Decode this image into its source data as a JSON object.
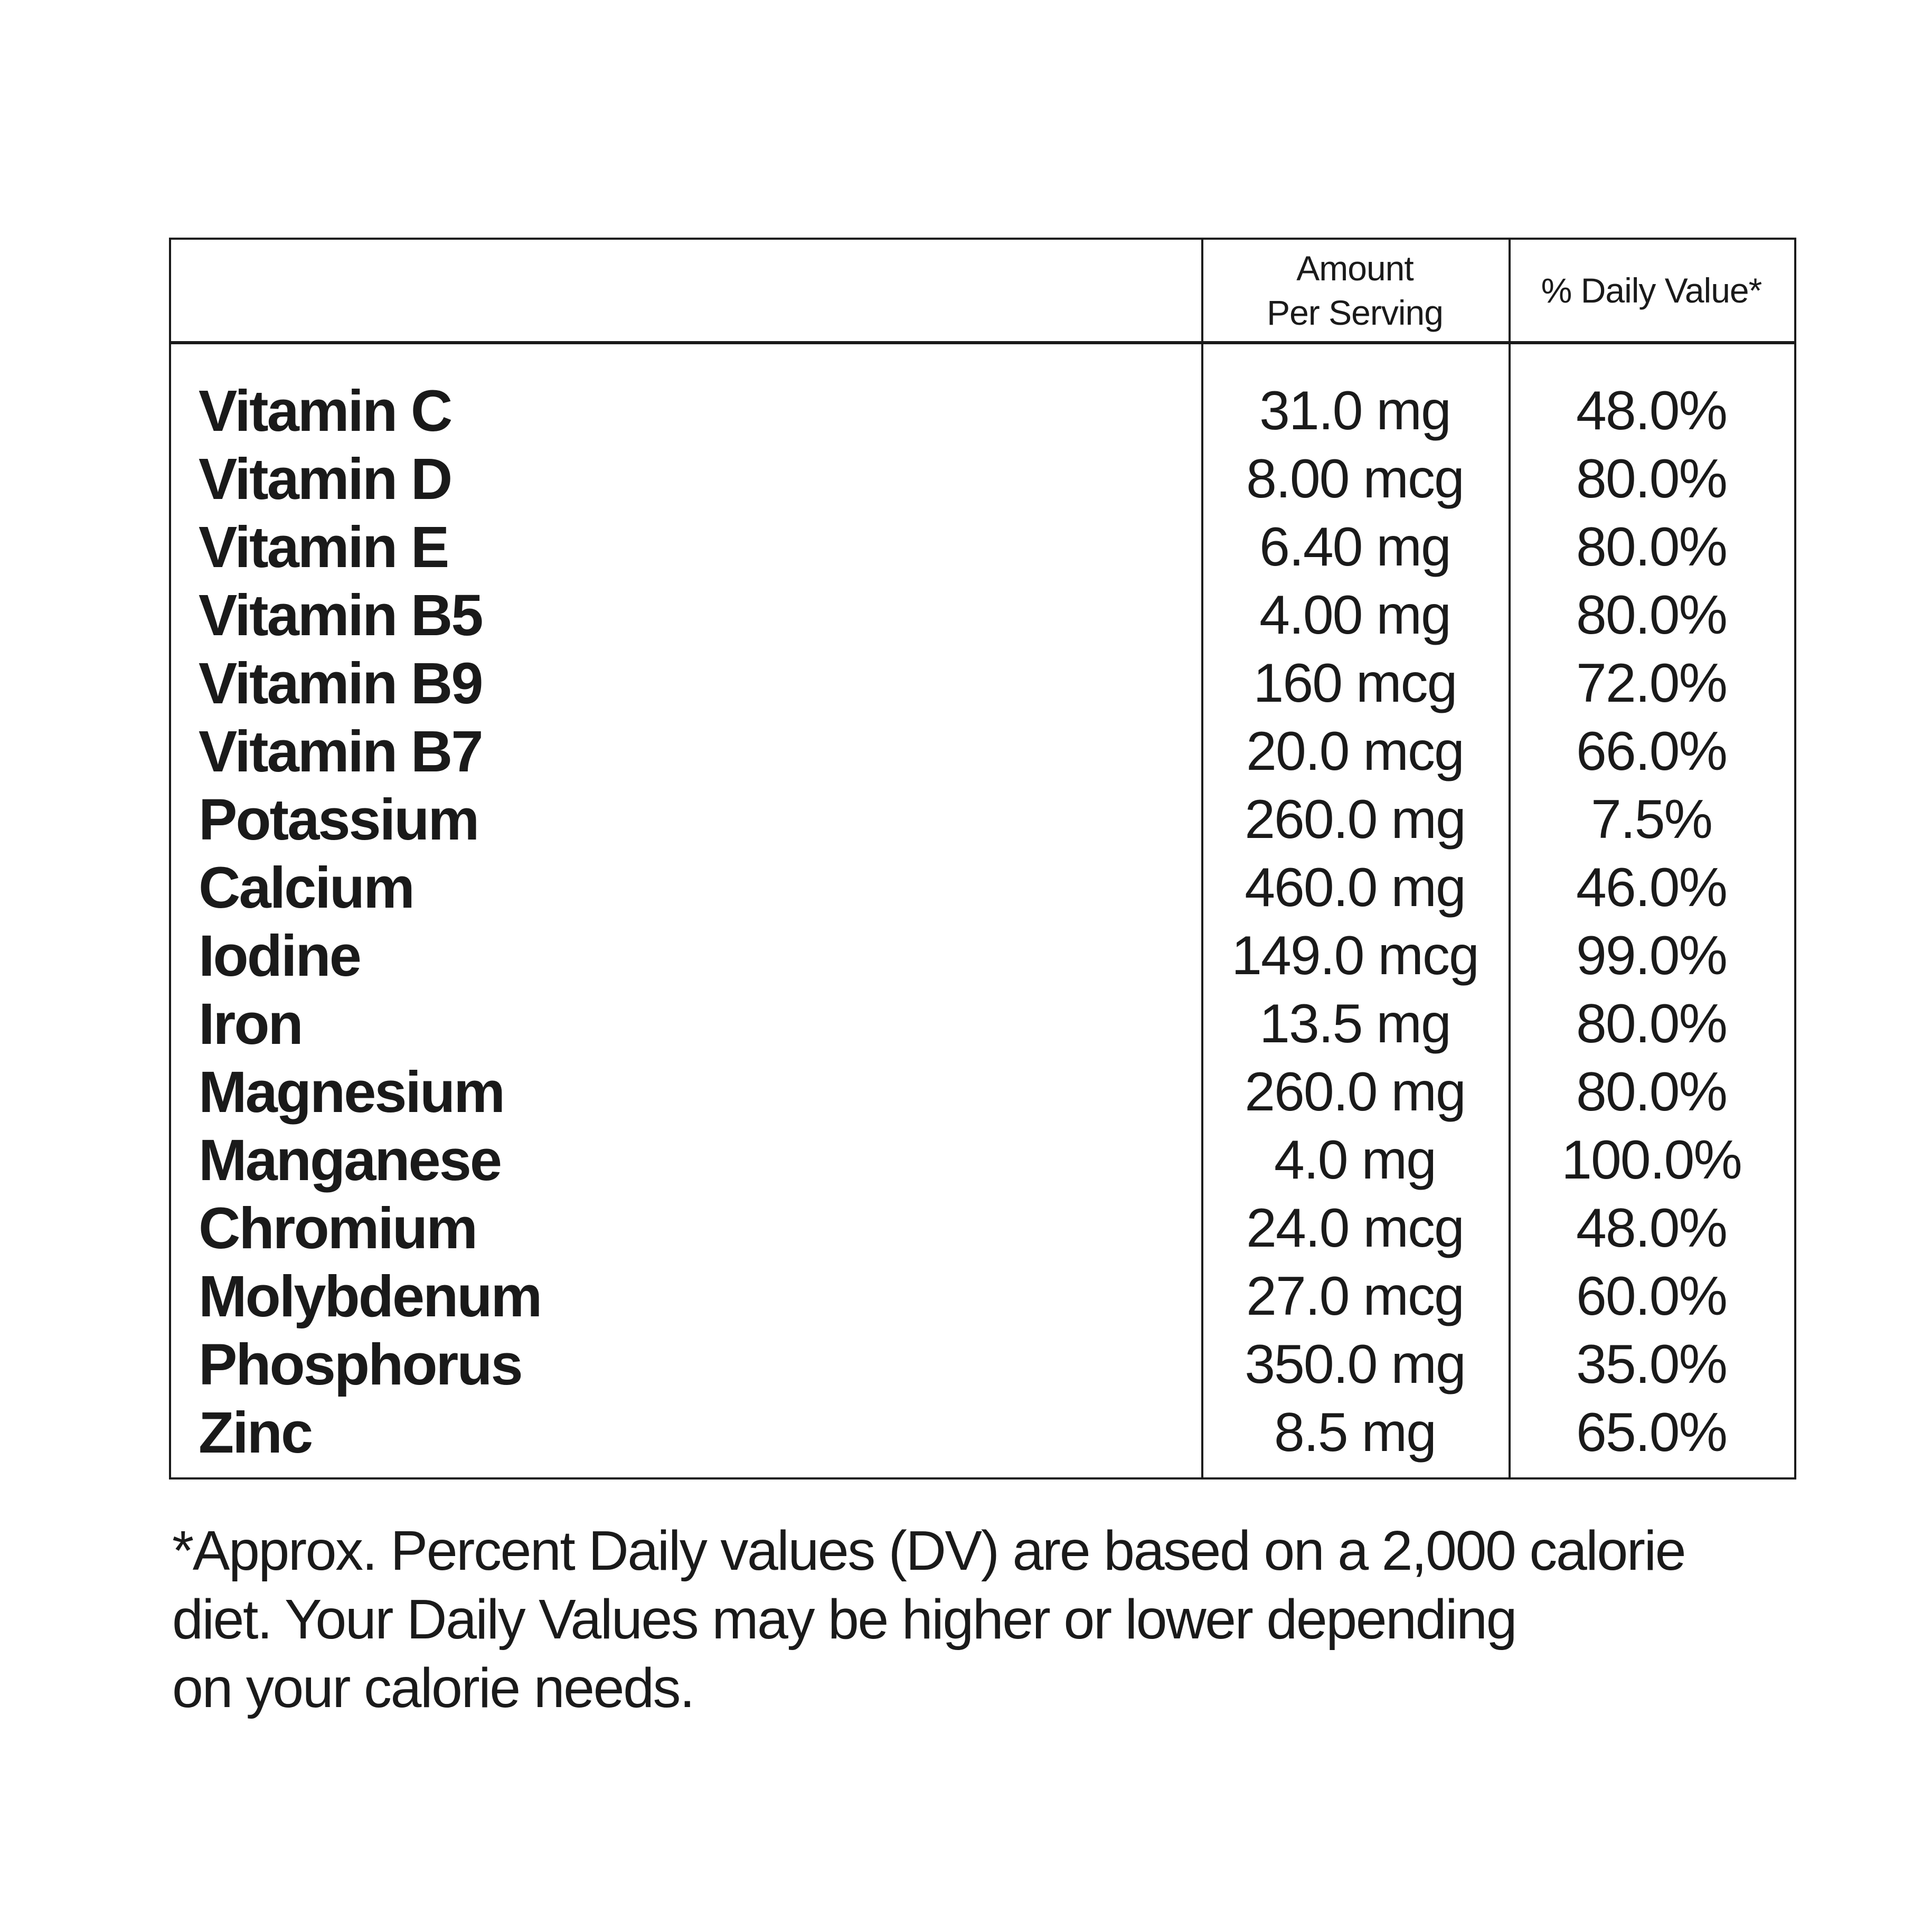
{
  "page": {
    "background": "#ffffff",
    "text_color": "#1a1a1a",
    "border_color": "#1a1a1a"
  },
  "table": {
    "header": {
      "amount_line1": "Amount",
      "amount_line2": "Per Serving",
      "dv_label": "% Daily Value*"
    },
    "rows": [
      {
        "name": "Vitamin C",
        "amount": "31.0 mg",
        "dv": "48.0%"
      },
      {
        "name": "Vitamin D",
        "amount": "8.00 mcg",
        "dv": "80.0%"
      },
      {
        "name": "Vitamin E",
        "amount": "6.40 mg",
        "dv": "80.0%"
      },
      {
        "name": "Vitamin B5",
        "amount": "4.00 mg",
        "dv": "80.0%"
      },
      {
        "name": "Vitamin B9",
        "amount": "160 mcg",
        "dv": "72.0%"
      },
      {
        "name": "Vitamin B7",
        "amount": "20.0 mcg",
        "dv": "66.0%"
      },
      {
        "name": "Potassium",
        "amount": "260.0 mg",
        "dv": "7.5%"
      },
      {
        "name": "Calcium",
        "amount": "460.0 mg",
        "dv": "46.0%"
      },
      {
        "name": "Iodine",
        "amount": "149.0 mcg",
        "dv": "99.0%"
      },
      {
        "name": "Iron",
        "amount": "13.5 mg",
        "dv": "80.0%"
      },
      {
        "name": "Magnesium",
        "amount": "260.0 mg",
        "dv": "80.0%"
      },
      {
        "name": "Manganese",
        "amount": "4.0 mg",
        "dv": "100.0%"
      },
      {
        "name": "Chromium",
        "amount": "24.0 mcg",
        "dv": "48.0%"
      },
      {
        "name": "Molybdenum",
        "amount": "27.0 mcg",
        "dv": "60.0%"
      },
      {
        "name": "Phosphorus",
        "amount": "350.0 mg",
        "dv": "35.0%"
      },
      {
        "name": "Zinc",
        "amount": "8.5 mg",
        "dv": "65.0%"
      }
    ],
    "footnote_lines": [
      "*Approx. Percent Daily values (DV) are based on a 2,000 calorie",
      "diet. Your Daily Values may be higher or lower depending",
      "on your calorie needs."
    ]
  }
}
